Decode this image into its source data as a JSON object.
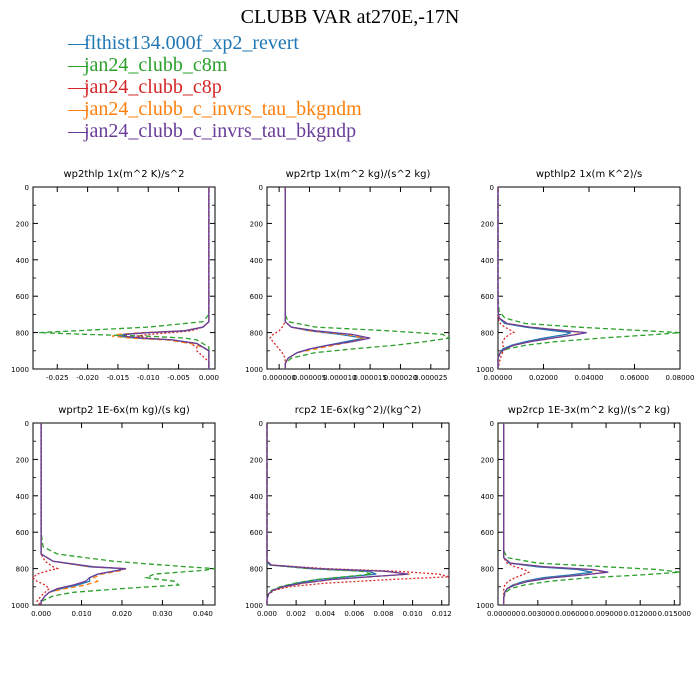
{
  "figure": {
    "title": "CLUBB VAR at270E,-17N",
    "legend": [
      {
        "label": "flthist134.000f_xp2_revert",
        "color": "#1f77b4",
        "style": "solid"
      },
      {
        "label": "jan24_clubb_c8m",
        "color": "#2ca02c",
        "style": "dashed"
      },
      {
        "label": "jan24_clubb_c8p",
        "color": "#d62728",
        "style": "dotted"
      },
      {
        "label": "jan24_clubb_c_invrs_tau_bkgndm",
        "color": "#ff7f0e",
        "style": "dashed"
      },
      {
        "label": "jan24_clubb_c_invrs_tau_bkgndp",
        "color": "#6a3d9a",
        "style": "solid"
      }
    ]
  },
  "chart_data": [
    {
      "type": "line",
      "title": "wp2thlp  1x(m^2 K)/s^2",
      "xlim": [
        -0.029,
        0.001
      ],
      "ylim": [
        1000,
        0
      ],
      "xticks": [
        -0.025,
        -0.02,
        -0.015,
        -0.01,
        -0.005,
        0.0
      ],
      "xtick_labels": [
        "-0.025",
        "-0.020",
        "-0.015",
        "-0.010",
        "-0.005",
        "0.000"
      ],
      "yticks": [
        0,
        200,
        400,
        600,
        800,
        1000
      ],
      "ytick_labels": [
        "0",
        "200",
        "400",
        "600",
        "800",
        "1000"
      ],
      "y": [
        0,
        200,
        400,
        600,
        700,
        740,
        770,
        790,
        800,
        810,
        820,
        830,
        840,
        860,
        880,
        900,
        930,
        960,
        1000
      ],
      "series": [
        {
          "name": "flthist134.000f_xp2_revert",
          "values": [
            0,
            0,
            0,
            0,
            0,
            0,
            -0.001,
            -0.004,
            -0.01,
            -0.014,
            -0.015,
            -0.012,
            -0.006,
            -0.002,
            -0.001,
            0,
            0,
            0,
            0
          ]
        },
        {
          "name": "jan24_clubb_c8m",
          "values": [
            0,
            0,
            0,
            0,
            0,
            -0.001,
            -0.01,
            -0.022,
            -0.028,
            -0.02,
            -0.01,
            -0.004,
            -0.002,
            -0.001,
            0,
            0,
            0,
            0,
            0
          ]
        },
        {
          "name": "jan24_clubb_c8p",
          "values": [
            0,
            0,
            0,
            0,
            0,
            0,
            -0.001,
            -0.003,
            -0.006,
            -0.01,
            -0.012,
            -0.01,
            -0.006,
            -0.003,
            -0.002,
            -0.002,
            -0.001,
            0,
            0
          ]
        },
        {
          "name": "jan24_clubb_c_invrs_tau_bkgndm",
          "values": [
            0,
            0,
            0,
            0,
            0,
            0,
            -0.001,
            -0.004,
            -0.011,
            -0.015,
            -0.016,
            -0.013,
            -0.007,
            -0.003,
            -0.001,
            0,
            0,
            0,
            0
          ]
        },
        {
          "name": "jan24_clubb_c_invrs_tau_bkgndp",
          "values": [
            0,
            0,
            0,
            0,
            0,
            0,
            -0.001,
            -0.004,
            -0.01,
            -0.014,
            -0.014,
            -0.011,
            -0.006,
            -0.002,
            -0.001,
            0,
            0,
            0,
            0
          ]
        }
      ]
    },
    {
      "type": "line",
      "title": "wp2rtp  1x(m^2 kg)/(s^2 kg)",
      "xlim": [
        -2e-06,
        2.8e-05
      ],
      "ylim": [
        1000,
        0
      ],
      "xticks": [
        0,
        5e-06,
        1e-05,
        1.5e-05,
        2e-05,
        2.5e-05
      ],
      "xtick_labels": [
        "0.000000",
        "0.000005",
        "0.000010",
        "0.000015",
        "0.000020",
        "0.000025"
      ],
      "yticks": [
        0,
        200,
        400,
        600,
        800,
        1000
      ],
      "ytick_labels": [
        "0",
        "200",
        "400",
        "600",
        "800",
        "1000"
      ],
      "y": [
        0,
        200,
        400,
        600,
        700,
        740,
        770,
        790,
        810,
        830,
        850,
        870,
        890,
        910,
        940,
        970,
        1000
      ],
      "series": [
        {
          "name": "flthist134.000f_xp2_revert",
          "values": [
            1e-06,
            1e-06,
            1e-06,
            1e-06,
            1e-06,
            1e-06,
            2e-06,
            5e-06,
            1e-05,
            1.4e-05,
            1.1e-05,
            8e-06,
            5e-06,
            3e-06,
            1.5e-06,
            1e-06,
            1e-06
          ]
        },
        {
          "name": "jan24_clubb_c8m",
          "values": [
            1e-06,
            1e-06,
            1e-06,
            1e-06,
            1e-06,
            1.5e-06,
            6e-06,
            1.8e-05,
            2.7e-05,
            2.8e-05,
            2.4e-05,
            1.9e-05,
            1.2e-05,
            6e-06,
            2e-06,
            1e-06,
            1e-06
          ]
        },
        {
          "name": "jan24_clubb_c8p",
          "values": [
            1e-06,
            1e-06,
            1e-06,
            1e-06,
            1e-06,
            1e-06,
            5e-07,
            0,
            -1e-06,
            -1.5e-06,
            -1e-06,
            -5e-07,
            0,
            5e-07,
            1e-06,
            1e-06,
            1e-06
          ]
        },
        {
          "name": "jan24_clubb_c_invrs_tau_bkgndm",
          "values": [
            1e-06,
            1e-06,
            1e-06,
            1e-06,
            1e-06,
            1e-06,
            2e-06,
            5e-06,
            1.1e-05,
            1.4e-05,
            1.2e-05,
            9e-06,
            6e-06,
            3e-06,
            1.5e-06,
            1e-06,
            1e-06
          ]
        },
        {
          "name": "jan24_clubb_c_invrs_tau_bkgndp",
          "values": [
            1e-06,
            1e-06,
            1e-06,
            1e-06,
            1e-06,
            1e-06,
            2e-06,
            6e-06,
            1.2e-05,
            1.5e-05,
            1.2e-05,
            8e-06,
            5e-06,
            3e-06,
            1.5e-06,
            1e-06,
            1e-06
          ]
        }
      ]
    },
    {
      "type": "line",
      "title": "wpthlp2  1x(m K^2)/s",
      "xlim": [
        0,
        0.08
      ],
      "ylim": [
        1000,
        0
      ],
      "xticks": [
        0,
        0.02,
        0.04,
        0.06,
        0.08
      ],
      "xtick_labels": [
        "0.00000",
        "0.02000",
        "0.04000",
        "0.06000",
        "0.08000"
      ],
      "yticks": [
        0,
        200,
        400,
        600,
        800,
        1000
      ],
      "ytick_labels": [
        "0",
        "200",
        "400",
        "600",
        "800",
        "1000"
      ],
      "y": [
        0,
        200,
        400,
        600,
        680,
        720,
        750,
        770,
        790,
        800,
        810,
        830,
        850,
        870,
        890,
        910,
        940,
        1000
      ],
      "series": [
        {
          "name": "flthist134.000f_xp2_revert",
          "values": [
            0,
            0,
            0,
            0,
            0,
            0.0005,
            0.003,
            0.012,
            0.025,
            0.032,
            0.03,
            0.02,
            0.012,
            0.006,
            0.002,
            0.001,
            0,
            0
          ]
        },
        {
          "name": "jan24_clubb_c8m",
          "values": [
            0,
            0,
            0,
            0,
            0.0005,
            0.003,
            0.012,
            0.035,
            0.065,
            0.08,
            0.07,
            0.045,
            0.025,
            0.012,
            0.004,
            0.001,
            0,
            0
          ]
        },
        {
          "name": "jan24_clubb_c8p",
          "values": [
            0,
            0,
            0,
            0,
            0,
            0,
            0.001,
            0.003,
            0.006,
            0.007,
            0.005,
            0.003,
            0.002,
            0.002,
            0.003,
            0.002,
            0.001,
            0
          ]
        },
        {
          "name": "jan24_clubb_c_invrs_tau_bkgndm",
          "values": [
            0,
            0,
            0,
            0,
            0,
            0.0005,
            0.004,
            0.014,
            0.03,
            0.038,
            0.034,
            0.024,
            0.014,
            0.007,
            0.003,
            0.001,
            0,
            0
          ]
        },
        {
          "name": "jan24_clubb_c_invrs_tau_bkgndp",
          "values": [
            0,
            0,
            0,
            0,
            0,
            0.0005,
            0.004,
            0.014,
            0.03,
            0.039,
            0.035,
            0.024,
            0.014,
            0.007,
            0.003,
            0.001,
            0,
            0
          ]
        }
      ]
    },
    {
      "type": "line",
      "title": "wprtp2  1E-6x(m kg)/(s kg)",
      "xlim": [
        -0.002,
        0.043
      ],
      "ylim": [
        1000,
        0
      ],
      "xticks": [
        0,
        0.01,
        0.02,
        0.03,
        0.04
      ],
      "xtick_labels": [
        "0.000",
        "0.010",
        "0.020",
        "0.030",
        "0.040"
      ],
      "yticks": [
        0,
        200,
        400,
        600,
        800,
        1000
      ],
      "ytick_labels": [
        "0",
        "200",
        "400",
        "600",
        "800",
        "1000"
      ],
      "y": [
        0,
        200,
        400,
        600,
        680,
        720,
        760,
        790,
        800,
        810,
        830,
        850,
        870,
        890,
        910,
        930,
        950,
        980,
        1000
      ],
      "series": [
        {
          "name": "flthist134.000f_xp2_revert",
          "values": [
            0,
            0,
            0,
            0,
            0,
            0,
            0.003,
            0.012,
            0.02,
            0.019,
            0.014,
            0.012,
            0.012,
            0.009,
            0.005,
            0.002,
            0.001,
            0,
            0
          ]
        },
        {
          "name": "jan24_clubb_c8m",
          "values": [
            0,
            0,
            0,
            0,
            0.0005,
            0.004,
            0.018,
            0.036,
            0.043,
            0.04,
            0.028,
            0.026,
            0.033,
            0.034,
            0.02,
            0.008,
            0.003,
            0,
            0
          ]
        },
        {
          "name": "jan24_clubb_c8p",
          "values": [
            0,
            0,
            0,
            0,
            0,
            0,
            0.001,
            0.003,
            0.004,
            0.002,
            -0.001,
            -0.002,
            -0.001,
            0.001,
            0.002,
            0.001,
            0,
            -0.001,
            0
          ]
        },
        {
          "name": "jan24_clubb_c_invrs_tau_bkgndm",
          "values": [
            0,
            0,
            0,
            0,
            0,
            0,
            0.003,
            0.012,
            0.021,
            0.02,
            0.015,
            0.013,
            0.014,
            0.011,
            0.006,
            0.002,
            0.001,
            0,
            0
          ]
        },
        {
          "name": "jan24_clubb_c_invrs_tau_bkgndp",
          "values": [
            0,
            0,
            0,
            0,
            0,
            0,
            0.003,
            0.013,
            0.021,
            0.019,
            0.014,
            0.012,
            0.011,
            0.008,
            0.004,
            0.002,
            0.001,
            0,
            0
          ]
        }
      ]
    },
    {
      "type": "line",
      "title": "rcp2  1E-6x(kg^2)/(kg^2)",
      "xlim": [
        0,
        0.0125
      ],
      "ylim": [
        1000,
        0
      ],
      "xticks": [
        0,
        0.002,
        0.004,
        0.006,
        0.008,
        0.01,
        0.012
      ],
      "xtick_labels": [
        "0.000",
        "0.002",
        "0.004",
        "0.006",
        "0.008",
        "0.010",
        "0.012"
      ],
      "yticks": [
        0,
        200,
        400,
        600,
        800,
        1000
      ],
      "ytick_labels": [
        "0",
        "200",
        "400",
        "600",
        "800",
        "1000"
      ],
      "y": [
        0,
        200,
        400,
        600,
        700,
        760,
        780,
        800,
        815,
        830,
        845,
        860,
        880,
        900,
        920,
        940,
        970,
        1000
      ],
      "series": [
        {
          "name": "flthist134.000f_xp2_revert",
          "values": [
            0,
            0,
            0,
            0,
            0,
            0,
            0.0002,
            0.003,
            0.007,
            0.0075,
            0.0055,
            0.0035,
            0.002,
            0.001,
            0.0004,
            0.0001,
            0,
            0
          ]
        },
        {
          "name": "jan24_clubb_c8m",
          "values": [
            0,
            0,
            0,
            0,
            0,
            0,
            0.0002,
            0.0028,
            0.0065,
            0.0072,
            0.0053,
            0.0034,
            0.0019,
            0.0009,
            0.0003,
            0.0001,
            0,
            0
          ]
        },
        {
          "name": "jan24_clubb_c8p",
          "values": [
            0,
            0,
            0,
            0,
            0,
            0,
            0.0003,
            0.004,
            0.009,
            0.0118,
            0.0125,
            0.0085,
            0.004,
            0.0015,
            0.0005,
            0.0001,
            0,
            0
          ]
        },
        {
          "name": "jan24_clubb_c_invrs_tau_bkgndm",
          "values": [
            0,
            0,
            0,
            0,
            0,
            0,
            0.0003,
            0.0035,
            0.008,
            0.0098,
            0.0072,
            0.0045,
            0.0025,
            0.0012,
            0.0004,
            0.0001,
            0,
            0
          ]
        },
        {
          "name": "jan24_clubb_c_invrs_tau_bkgndp",
          "values": [
            0,
            0,
            0,
            0,
            0,
            0,
            0.0003,
            0.0035,
            0.0082,
            0.0097,
            0.007,
            0.0044,
            0.0024,
            0.0011,
            0.0004,
            0.0001,
            0,
            0
          ]
        }
      ]
    },
    {
      "type": "line",
      "title": "wp2rcp  1E-3x(m^2 kg)/(s^2 kg)",
      "xlim": [
        -0.0005,
        0.0155
      ],
      "ylim": [
        1000,
        0
      ],
      "xticks": [
        0,
        0.003,
        0.006,
        0.009,
        0.012,
        0.015
      ],
      "xtick_labels": [
        "0.000000",
        "0.003000",
        "0.006000",
        "0.009000",
        "0.012000",
        "0.015000"
      ],
      "yticks": [
        0,
        200,
        400,
        600,
        800,
        1000
      ],
      "ytick_labels": [
        "0",
        "200",
        "400",
        "600",
        "800",
        "1000"
      ],
      "y": [
        0,
        200,
        400,
        600,
        700,
        740,
        770,
        790,
        805,
        820,
        835,
        850,
        870,
        890,
        910,
        930,
        960,
        1000
      ],
      "series": [
        {
          "name": "flthist134.000f_xp2_revert",
          "values": [
            0,
            0,
            0,
            0,
            0,
            0,
            0.0005,
            0.003,
            0.0065,
            0.0078,
            0.0058,
            0.0035,
            0.0018,
            0.0008,
            0.0003,
            0.0001,
            0,
            0
          ]
        },
        {
          "name": "jan24_clubb_c8m",
          "values": [
            0,
            0,
            0,
            0,
            0,
            0.0003,
            0.003,
            0.009,
            0.0135,
            0.0155,
            0.012,
            0.0075,
            0.004,
            0.0018,
            0.0006,
            0.0002,
            0,
            0
          ]
        },
        {
          "name": "jan24_clubb_c8p",
          "values": [
            0,
            0,
            0,
            0,
            0,
            0,
            0.0003,
            0.001,
            0.0018,
            0.0022,
            0.0016,
            0.001,
            0.0004,
            0.0001,
            0,
            0,
            0,
            0
          ]
        },
        {
          "name": "jan24_clubb_c_invrs_tau_bkgndm",
          "values": [
            0,
            0,
            0,
            0,
            0,
            0,
            0.0006,
            0.0035,
            0.0075,
            0.009,
            0.0068,
            0.0042,
            0.0021,
            0.0009,
            0.0003,
            0.0001,
            0,
            0
          ]
        },
        {
          "name": "jan24_clubb_c_invrs_tau_bkgndp",
          "values": [
            0,
            0,
            0,
            0,
            0,
            0,
            0.0006,
            0.0036,
            0.0078,
            0.0092,
            0.007,
            0.0043,
            0.0022,
            0.001,
            0.0003,
            0.0001,
            0,
            0
          ]
        }
      ]
    }
  ]
}
